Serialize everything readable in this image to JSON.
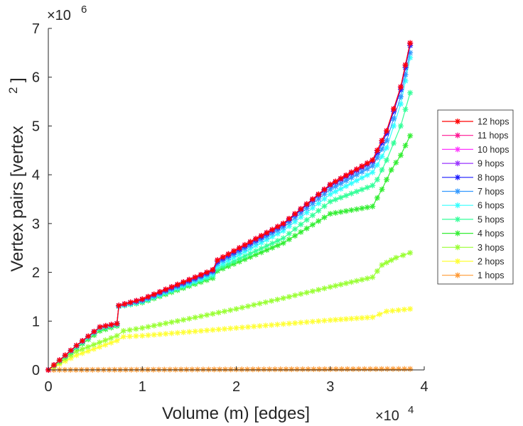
{
  "chart_data": {
    "type": "line",
    "xlabel": "Volume (m) [edges]",
    "ylabel": "Vertex pairs [vertex",
    "ylabel_sup": "2",
    "ylabel_close": "]",
    "x_multiplier": "×10",
    "x_multiplier_exp": "4",
    "y_multiplier": "×10",
    "y_multiplier_exp": "6",
    "xlim": [
      0,
      4
    ],
    "ylim": [
      0,
      7
    ],
    "xticks": [
      "0",
      "1",
      "2",
      "3",
      "4"
    ],
    "yticks": [
      "0",
      "1",
      "2",
      "3",
      "4",
      "5",
      "6",
      "7"
    ],
    "legend_position": "right",
    "series": [
      {
        "name": "12 hops",
        "color": "#ff0000",
        "x": [
          0,
          0.3,
          0.55,
          0.73,
          0.75,
          1,
          1.5,
          1.75,
          1.8,
          2.5,
          3,
          3.45,
          3.5,
          3.6,
          3.75,
          3.85
        ],
        "y": [
          0,
          0.5,
          0.88,
          0.95,
          1.32,
          1.45,
          1.85,
          2.05,
          2.25,
          3.0,
          3.8,
          4.3,
          4.5,
          4.9,
          5.8,
          6.7
        ]
      },
      {
        "name": "11 hops",
        "color": "#ff1493",
        "x": [
          0,
          0.3,
          0.55,
          0.73,
          0.75,
          1,
          1.5,
          1.75,
          1.8,
          2.5,
          3,
          3.45,
          3.5,
          3.6,
          3.75,
          3.85
        ],
        "y": [
          0,
          0.5,
          0.88,
          0.95,
          1.32,
          1.45,
          1.85,
          2.05,
          2.25,
          3.0,
          3.8,
          4.3,
          4.5,
          4.9,
          5.8,
          6.7
        ]
      },
      {
        "name": "10 hops",
        "color": "#ff33ff",
        "x": [
          0,
          0.3,
          0.55,
          0.73,
          0.75,
          1,
          1.5,
          1.75,
          1.8,
          2.5,
          3,
          3.45,
          3.5,
          3.6,
          3.75,
          3.85
        ],
        "y": [
          0,
          0.5,
          0.88,
          0.95,
          1.32,
          1.45,
          1.85,
          2.05,
          2.25,
          3.0,
          3.8,
          4.3,
          4.5,
          4.9,
          5.8,
          6.7
        ]
      },
      {
        "name": "9 hops",
        "color": "#9933ff",
        "x": [
          0,
          0.3,
          0.55,
          0.73,
          0.75,
          1,
          1.5,
          1.75,
          1.8,
          2.5,
          3,
          3.45,
          3.5,
          3.6,
          3.75,
          3.85
        ],
        "y": [
          0,
          0.5,
          0.88,
          0.95,
          1.32,
          1.45,
          1.85,
          2.05,
          2.25,
          3.0,
          3.8,
          4.3,
          4.5,
          4.9,
          5.8,
          6.7
        ]
      },
      {
        "name": "8 hops",
        "color": "#1a1aff",
        "x": [
          0,
          0.3,
          0.55,
          0.73,
          0.75,
          1,
          1.5,
          1.75,
          1.8,
          2.5,
          3,
          3.45,
          3.5,
          3.6,
          3.75,
          3.85
        ],
        "y": [
          0,
          0.5,
          0.88,
          0.95,
          1.32,
          1.44,
          1.83,
          2.03,
          2.22,
          2.98,
          3.78,
          4.27,
          4.45,
          4.85,
          5.75,
          6.65
        ]
      },
      {
        "name": "7 hops",
        "color": "#3399ff",
        "x": [
          0,
          0.3,
          0.55,
          0.73,
          0.75,
          1,
          1.5,
          1.75,
          1.8,
          2.5,
          3,
          3.45,
          3.5,
          3.6,
          3.75,
          3.85
        ],
        "y": [
          0,
          0.49,
          0.87,
          0.94,
          1.31,
          1.42,
          1.8,
          2.0,
          2.18,
          2.92,
          3.7,
          4.18,
          4.35,
          4.7,
          5.6,
          6.5
        ]
      },
      {
        "name": "6 hops",
        "color": "#33ffff",
        "x": [
          0,
          0.3,
          0.55,
          0.73,
          0.75,
          1,
          1.5,
          1.75,
          1.8,
          2.5,
          3,
          3.45,
          3.5,
          3.6,
          3.75,
          3.85
        ],
        "y": [
          0,
          0.48,
          0.86,
          0.93,
          1.3,
          1.4,
          1.77,
          1.96,
          2.12,
          2.85,
          3.6,
          4.05,
          4.2,
          4.55,
          5.45,
          6.4
        ]
      },
      {
        "name": "5 hops",
        "color": "#33ff99",
        "x": [
          0,
          0.3,
          0.55,
          0.73,
          0.75,
          1,
          1.5,
          1.75,
          1.8,
          2.5,
          3,
          3.45,
          3.5,
          3.6,
          3.75,
          3.85
        ],
        "y": [
          0,
          0.47,
          0.85,
          0.92,
          1.3,
          1.4,
          1.75,
          1.92,
          2.07,
          2.7,
          3.45,
          3.78,
          3.9,
          4.3,
          5.0,
          5.68
        ]
      },
      {
        "name": "4 hops",
        "color": "#33ee33",
        "x": [
          0,
          0.3,
          0.55,
          0.73,
          0.75,
          1,
          1.5,
          1.75,
          1.8,
          2.5,
          3,
          3.45,
          3.55,
          3.65,
          3.75,
          3.85
        ],
        "y": [
          0,
          0.45,
          0.8,
          0.9,
          1.3,
          1.38,
          1.72,
          1.88,
          2.03,
          2.6,
          3.2,
          3.35,
          3.7,
          4.1,
          4.4,
          4.8
        ]
      },
      {
        "name": "3 hops",
        "color": "#99ff33",
        "x": [
          0,
          0.3,
          0.73,
          0.8,
          1,
          1.5,
          2,
          2.5,
          3,
          3.45,
          3.55,
          3.7,
          3.85
        ],
        "y": [
          0,
          0.38,
          0.7,
          0.8,
          0.86,
          1.05,
          1.25,
          1.47,
          1.7,
          1.9,
          2.15,
          2.3,
          2.4
        ]
      },
      {
        "name": "2 hops",
        "color": "#ffff33",
        "x": [
          0,
          0.3,
          0.73,
          0.8,
          1,
          1.5,
          2,
          2.5,
          3,
          3.45,
          3.6,
          3.85
        ],
        "y": [
          0,
          0.3,
          0.6,
          0.68,
          0.7,
          0.78,
          0.86,
          0.94,
          1.02,
          1.08,
          1.2,
          1.25
        ]
      },
      {
        "name": "1 hops",
        "color": "#ff9933",
        "x": [
          0,
          1,
          2,
          3,
          3.85
        ],
        "y": [
          0,
          0.005,
          0.01,
          0.015,
          0.02
        ]
      }
    ]
  }
}
